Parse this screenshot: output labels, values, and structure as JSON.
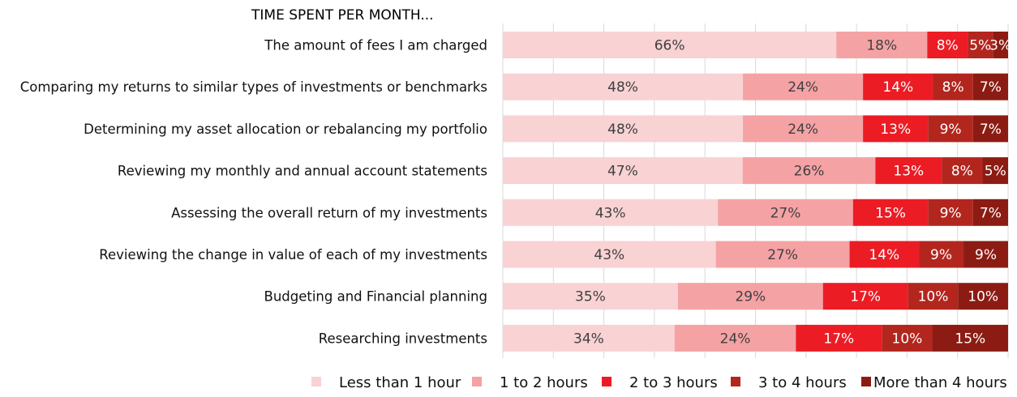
{
  "chart_data": {
    "type": "bar",
    "orientation": "horizontal",
    "stacked": true,
    "title": "TIME SPENT PER MONTH...",
    "xlim": [
      0,
      100
    ],
    "grid": true,
    "legend_position": "bottom",
    "categories": [
      "The amount of fees I am charged",
      "Comparing my returns to similar types of investments or benchmarks",
      "Determining my asset allocation or rebalancing my portfolio",
      "Reviewing my monthly and annual account statements",
      "Assessing the overall return of my investments",
      "Reviewing the change in value of each of my investments",
      "Budgeting and Financial planning",
      "Researching investments"
    ],
    "series": [
      {
        "name": "Less than 1 hour",
        "color": "#f9d2d3",
        "label_color": "#404040",
        "values": [
          66,
          48,
          48,
          47,
          43,
          43,
          35,
          34
        ]
      },
      {
        "name": "1 to 2 hours",
        "color": "#f5a2a4",
        "label_color": "#404040",
        "values": [
          18,
          24,
          24,
          26,
          27,
          27,
          29,
          24
        ]
      },
      {
        "name": "2 to 3 hours",
        "color": "#ec1c24",
        "label_color": "#ffffff",
        "values": [
          8,
          14,
          13,
          13,
          15,
          14,
          17,
          17
        ]
      },
      {
        "name": "3 to 4 hours",
        "color": "#b3261e",
        "label_color": "#ffffff",
        "values": [
          5,
          8,
          9,
          8,
          9,
          9,
          10,
          10
        ]
      },
      {
        "name": "More than 4 hours",
        "color": "#8c1c13",
        "label_color": "#ffffff",
        "values": [
          3,
          7,
          7,
          5,
          7,
          9,
          10,
          15
        ]
      }
    ],
    "value_suffix": "%"
  }
}
